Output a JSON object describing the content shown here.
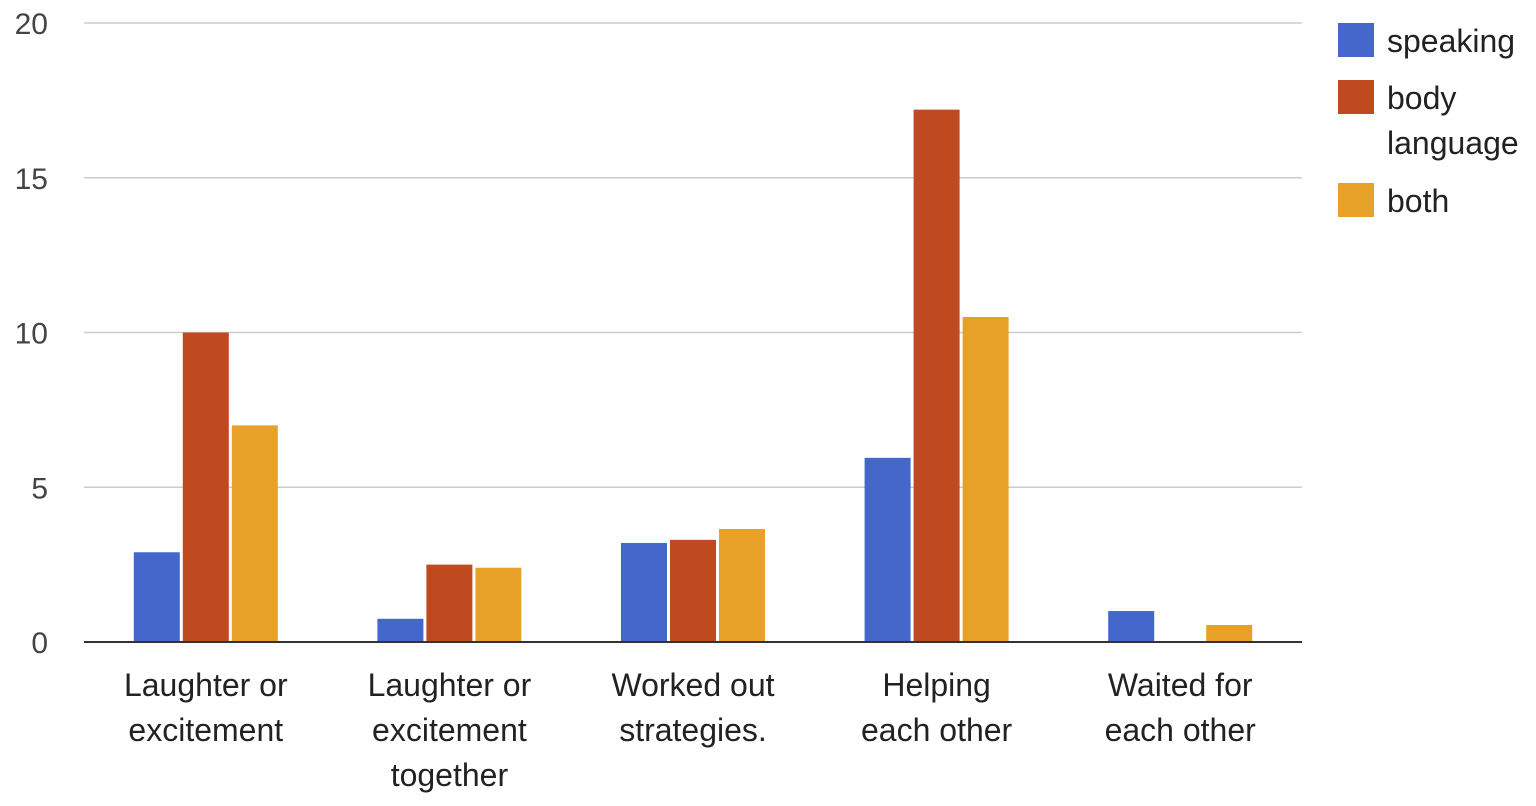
{
  "chart_data": {
    "type": "bar",
    "title": "",
    "xlabel": "",
    "ylabel": "",
    "ylim": [
      0,
      20
    ],
    "yticks": [
      "0",
      "5",
      "10",
      "15",
      "20"
    ],
    "grid": true,
    "legend_position": "right",
    "categories": [
      [
        "Laughter or",
        "excitement"
      ],
      [
        "Laughter or",
        "excitement",
        "together"
      ],
      [
        "Worked out",
        "strategies."
      ],
      [
        "Helping",
        "each other"
      ],
      [
        "Waited for",
        "each other"
      ]
    ],
    "series": [
      {
        "name": [
          "speaking"
        ],
        "color": "#4467cc",
        "values": [
          2.9,
          0.75,
          3.2,
          5.95,
          1.0
        ]
      },
      {
        "name": [
          "body",
          "language"
        ],
        "color": "#bf4a20",
        "values": [
          10.0,
          2.5,
          3.3,
          17.2,
          0
        ]
      },
      {
        "name": [
          "both"
        ],
        "color": "#e8a128",
        "values": [
          7.0,
          2.4,
          3.65,
          10.5,
          0.55
        ]
      }
    ]
  }
}
